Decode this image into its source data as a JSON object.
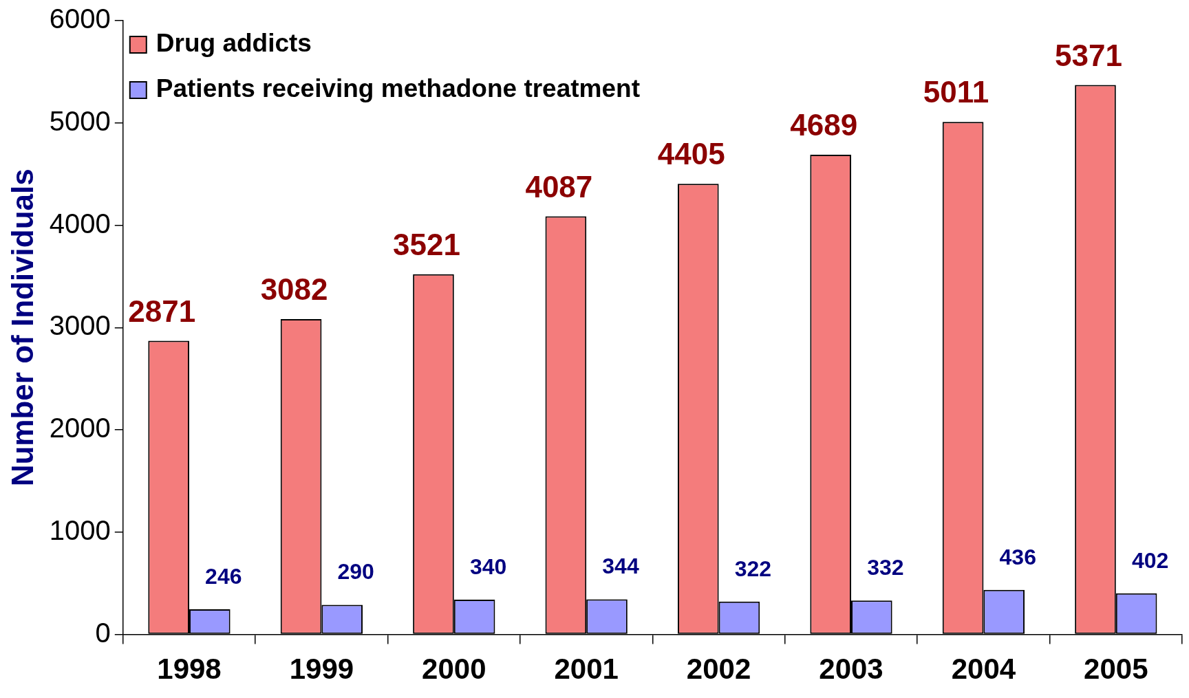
{
  "chart_data": {
    "type": "bar",
    "ylabel": "Number of Individuals",
    "categories": [
      "1998",
      "1999",
      "2000",
      "2001",
      "2002",
      "2003",
      "2004",
      "2005"
    ],
    "series": [
      {
        "name": "Drug addicts",
        "color": "#f47c7c",
        "values": [
          2871,
          3082,
          3521,
          4087,
          4405,
          4689,
          5011,
          5371
        ]
      },
      {
        "name": "Patients receiving methadone treatment",
        "color": "#9999ff",
        "values": [
          246,
          290,
          340,
          344,
          322,
          332,
          436,
          402
        ]
      }
    ],
    "ylim": [
      0,
      6000
    ],
    "yticks": [
      0,
      1000,
      2000,
      3000,
      4000,
      5000,
      6000
    ],
    "grid": false,
    "legend": "top left",
    "data_labels": true
  }
}
